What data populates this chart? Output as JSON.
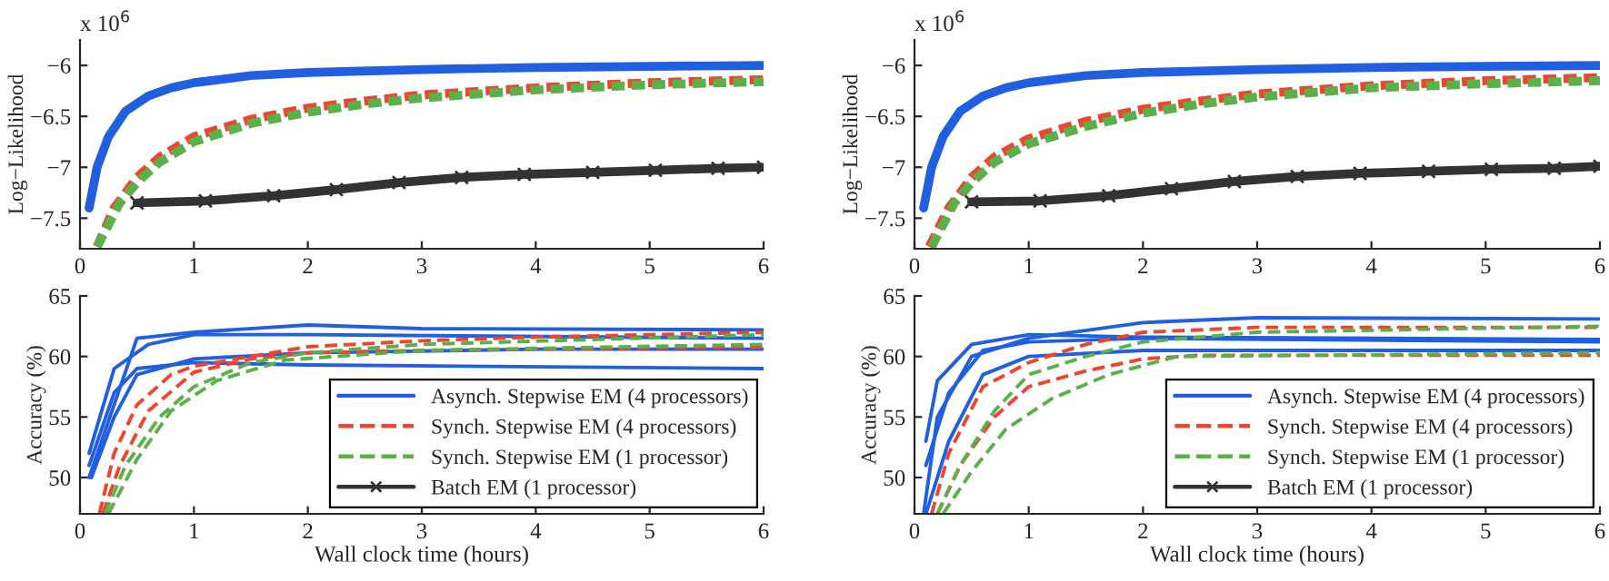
{
  "chart_data": [
    {
      "type": "line",
      "ylabel": "Log−Likelihood",
      "annotations": [
        "x 10$^{6}$"
      ],
      "xlim": [
        0,
        6
      ],
      "xticks": [
        0,
        1,
        2,
        3,
        4,
        5,
        6
      ],
      "ylim": [
        -7.8,
        -5.75
      ],
      "yticks": [
        {
          "value": -7.5,
          "label": "−7.5"
        },
        {
          "value": -7,
          "label": "−7"
        },
        {
          "value": -6.5,
          "label": "−6.5"
        },
        {
          "value": -6,
          "label": "−6"
        }
      ],
      "grid": false,
      "legend": false,
      "series": [
        {
          "color": "#1f5fe0",
          "line_style": "solid",
          "marker": "none",
          "x": [
            0.08,
            0.15,
            0.25,
            0.4,
            0.6,
            0.8,
            1.0,
            1.5,
            2,
            3,
            4,
            5,
            6
          ],
          "values": [
            -7.4,
            -7.0,
            -6.7,
            -6.45,
            -6.3,
            -6.22,
            -6.17,
            -6.1,
            -6.07,
            -6.04,
            -6.02,
            -6.01,
            -6.0
          ]
        },
        {
          "color": "#f0442c",
          "line_style": "dashed",
          "marker": "none",
          "x": [
            0.15,
            0.3,
            0.5,
            0.7,
            1.0,
            1.5,
            2.0,
            2.5,
            3.0,
            4.0,
            5.0,
            6.0
          ],
          "values": [
            -7.78,
            -7.4,
            -7.1,
            -6.9,
            -6.7,
            -6.53,
            -6.42,
            -6.35,
            -6.29,
            -6.22,
            -6.17,
            -6.14
          ]
        },
        {
          "color": "#5cb04c",
          "line_style": "dashed",
          "marker": "none",
          "x": [
            0.15,
            0.35,
            0.5,
            0.7,
            1.0,
            1.5,
            2.0,
            2.5,
            3,
            4,
            5,
            6
          ],
          "values": [
            -7.78,
            -7.35,
            -7.15,
            -6.95,
            -6.75,
            -6.57,
            -6.46,
            -6.38,
            -6.32,
            -6.24,
            -6.19,
            -6.16
          ]
        },
        {
          "color": "#333333",
          "line_style": "solid",
          "marker": "cross",
          "x": [
            0.5,
            1.1,
            1.7,
            2.25,
            2.8,
            3.35,
            3.9,
            4.5,
            5.05,
            5.6,
            6.0
          ],
          "values": [
            -7.35,
            -7.33,
            -7.28,
            -7.22,
            -7.15,
            -7.1,
            -7.07,
            -7.05,
            -7.03,
            -7.01,
            -7.0
          ]
        }
      ]
    },
    {
      "type": "line",
      "ylabel": "Accuracy (%)",
      "xlabel": "Wall clock time (hours)",
      "xlim": [
        0,
        6
      ],
      "xticks": [
        0,
        1,
        2,
        3,
        4,
        5,
        6
      ],
      "ylim": [
        47,
        65
      ],
      "yticks": [
        50,
        55,
        60,
        65
      ],
      "grid": false,
      "legend": "bottom right",
      "series": [
        {
          "name": "Asynch. Stepwise EM (4 processors)",
          "color": "#1f5fe0",
          "line_style": "solid",
          "marker": "none",
          "x": [
            0.08,
            0.5,
            1,
            2,
            3,
            6
          ],
          "values": [
            50,
            61.5,
            62,
            62.6,
            62.3,
            62.2
          ]
        },
        {
          "color": "#1f5fe0",
          "line_style": "solid",
          "marker": "none",
          "x": [
            0.08,
            0.3,
            0.6,
            1,
            2,
            6
          ],
          "values": [
            52,
            59,
            61,
            61.8,
            61.8,
            61.5
          ]
        },
        {
          "color": "#1f5fe0",
          "line_style": "solid",
          "marker": "none",
          "x": [
            0.08,
            0.3,
            0.5,
            1,
            2,
            6
          ],
          "values": [
            51,
            57,
            59,
            59.5,
            59.3,
            59.0
          ]
        },
        {
          "color": "#1f5fe0",
          "line_style": "solid",
          "marker": "none",
          "x": [
            0.1,
            0.3,
            0.5,
            1,
            2,
            4,
            6
          ],
          "values": [
            50,
            55,
            58.5,
            59.8,
            60.3,
            60.6,
            60.6
          ]
        },
        {
          "name": "Synch. Stepwise EM (4 processors)",
          "color": "#f0442c",
          "line_style": "dashed",
          "marker": "none",
          "x": [
            0.17,
            0.3,
            0.5,
            0.8,
            1,
            1.5,
            2,
            3,
            4,
            6
          ],
          "values": [
            47,
            52,
            56,
            58.5,
            59.2,
            60,
            60.8,
            61.3,
            61.6,
            62.0
          ]
        },
        {
          "color": "#f0442c",
          "line_style": "dashed",
          "marker": "none",
          "x": [
            0.2,
            0.35,
            0.6,
            1,
            1.5,
            2,
            3,
            6
          ],
          "values": [
            47,
            51,
            55.5,
            58.7,
            59.8,
            60.3,
            60.5,
            60.8
          ]
        },
        {
          "name": "Synch. Stepwise EM (1 processor)",
          "color": "#5cb04c",
          "line_style": "dashed",
          "marker": "none",
          "x": [
            0.22,
            0.4,
            0.7,
            1,
            1.5,
            2,
            3,
            6
          ],
          "values": [
            47,
            51,
            55,
            57.5,
            59.5,
            60.3,
            61,
            61.8
          ]
        },
        {
          "color": "#5cb04c",
          "line_style": "dashed",
          "marker": "none",
          "x": [
            0.25,
            0.5,
            0.8,
            1.2,
            1.8,
            3,
            6
          ],
          "values": [
            47,
            51.5,
            55.5,
            58,
            59.7,
            60.5,
            61.0
          ]
        },
        {
          "name": "Batch EM (1 processor)",
          "color": "#333333",
          "line_style": "solid",
          "marker": "cross"
        }
      ]
    },
    {
      "type": "line",
      "ylabel": "Log−Likelihood",
      "annotations": [
        "x 10$^{6}$"
      ],
      "xlim": [
        0,
        6
      ],
      "xticks": [
        0,
        1,
        2,
        3,
        4,
        5,
        6
      ],
      "ylim": [
        -7.8,
        -5.75
      ],
      "yticks": [
        {
          "value": -7.5,
          "label": "−7.5"
        },
        {
          "value": -7,
          "label": "−7"
        },
        {
          "value": -6.5,
          "label": "−6.5"
        },
        {
          "value": -6,
          "label": "−6"
        }
      ],
      "grid": false,
      "legend": false,
      "series": [
        {
          "color": "#1f5fe0",
          "line_style": "solid",
          "marker": "none",
          "x": [
            0.08,
            0.15,
            0.25,
            0.4,
            0.6,
            0.8,
            1.0,
            1.5,
            2,
            3,
            4,
            5,
            6
          ],
          "values": [
            -7.4,
            -7.0,
            -6.7,
            -6.45,
            -6.3,
            -6.22,
            -6.17,
            -6.1,
            -6.07,
            -6.04,
            -6.02,
            -6.01,
            -6.0
          ]
        },
        {
          "color": "#f0442c",
          "line_style": "dashed",
          "marker": "none",
          "x": [
            0.13,
            0.3,
            0.5,
            0.7,
            1.0,
            1.5,
            2.0,
            2.5,
            3.0,
            4.0,
            5.0,
            6.0
          ],
          "values": [
            -7.78,
            -7.4,
            -7.1,
            -6.9,
            -6.72,
            -6.55,
            -6.43,
            -6.35,
            -6.28,
            -6.2,
            -6.15,
            -6.12
          ]
        },
        {
          "color": "#5cb04c",
          "line_style": "dashed",
          "marker": "none",
          "x": [
            0.15,
            0.35,
            0.5,
            0.7,
            1.0,
            1.5,
            2.0,
            2.5,
            3,
            4,
            5,
            6
          ],
          "values": [
            -7.78,
            -7.35,
            -7.15,
            -6.95,
            -6.77,
            -6.6,
            -6.47,
            -6.38,
            -6.31,
            -6.22,
            -6.18,
            -6.15
          ]
        },
        {
          "color": "#333333",
          "line_style": "solid",
          "marker": "cross",
          "x": [
            0.5,
            1.1,
            1.7,
            2.25,
            2.8,
            3.35,
            3.9,
            4.5,
            5.05,
            5.6,
            6.0
          ],
          "values": [
            -7.34,
            -7.33,
            -7.28,
            -7.21,
            -7.14,
            -7.09,
            -7.06,
            -7.04,
            -7.02,
            -7.01,
            -6.99
          ]
        }
      ]
    },
    {
      "type": "line",
      "ylabel": "Accuracy (%)",
      "xlabel": "Wall clock time (hours)",
      "xlim": [
        0,
        6
      ],
      "xticks": [
        0,
        1,
        2,
        3,
        4,
        5,
        6
      ],
      "ylim": [
        47,
        65
      ],
      "yticks": [
        50,
        55,
        60,
        65
      ],
      "grid": false,
      "legend": "bottom right",
      "series": [
        {
          "name": "Asynch. Stepwise EM (4 processors)",
          "color": "#1f5fe0",
          "line_style": "solid",
          "marker": "none",
          "x": [
            0.08,
            0.2,
            0.5,
            1,
            2,
            3,
            6
          ],
          "values": [
            47,
            55,
            60,
            61.5,
            62.8,
            63.2,
            63.1
          ]
        },
        {
          "color": "#1f5fe0",
          "line_style": "solid",
          "marker": "none",
          "x": [
            0.1,
            0.2,
            0.5,
            1,
            2,
            6
          ],
          "values": [
            53,
            58,
            61,
            61.8,
            61.6,
            61.4
          ]
        },
        {
          "color": "#1f5fe0",
          "line_style": "solid",
          "marker": "none",
          "x": [
            0.1,
            0.3,
            0.6,
            1,
            2,
            6
          ],
          "values": [
            51,
            57,
            60.5,
            61.2,
            61.5,
            61.2
          ]
        },
        {
          "color": "#1f5fe0",
          "line_style": "solid",
          "marker": "none",
          "x": [
            0.1,
            0.3,
            0.6,
            1,
            2,
            6
          ],
          "values": [
            47,
            53,
            58.5,
            60,
            60.5,
            60.5
          ]
        },
        {
          "name": "Synch. Stepwise EM (4 processors)",
          "color": "#f0442c",
          "line_style": "dashed",
          "marker": "none",
          "x": [
            0.15,
            0.3,
            0.6,
            1,
            1.5,
            2,
            3,
            6
          ],
          "values": [
            47,
            52,
            57.5,
            59.5,
            61,
            62,
            62.4,
            62.4
          ]
        },
        {
          "color": "#f0442c",
          "line_style": "dashed",
          "marker": "none",
          "x": [
            0.2,
            0.4,
            0.7,
            1,
            1.5,
            2,
            2.5,
            6
          ],
          "values": [
            47,
            51,
            55,
            57.5,
            58.8,
            59.8,
            60.1,
            60.1
          ]
        },
        {
          "name": "Synch. Stepwise EM (1 processor)",
          "color": "#5cb04c",
          "line_style": "dashed",
          "marker": "none",
          "x": [
            0.2,
            0.4,
            0.7,
            1,
            1.5,
            2,
            3,
            6
          ],
          "values": [
            47,
            51,
            55.5,
            58.5,
            60,
            61.2,
            62,
            62.5
          ]
        },
        {
          "color": "#5cb04c",
          "line_style": "dashed",
          "marker": "none",
          "x": [
            0.25,
            0.5,
            0.8,
            1.2,
            1.7,
            2.3,
            6
          ],
          "values": [
            47,
            50.5,
            54,
            56.5,
            58.5,
            60,
            60.3
          ]
        },
        {
          "name": "Batch EM (1 processor)",
          "color": "#333333",
          "line_style": "solid",
          "marker": "cross"
        }
      ]
    }
  ]
}
